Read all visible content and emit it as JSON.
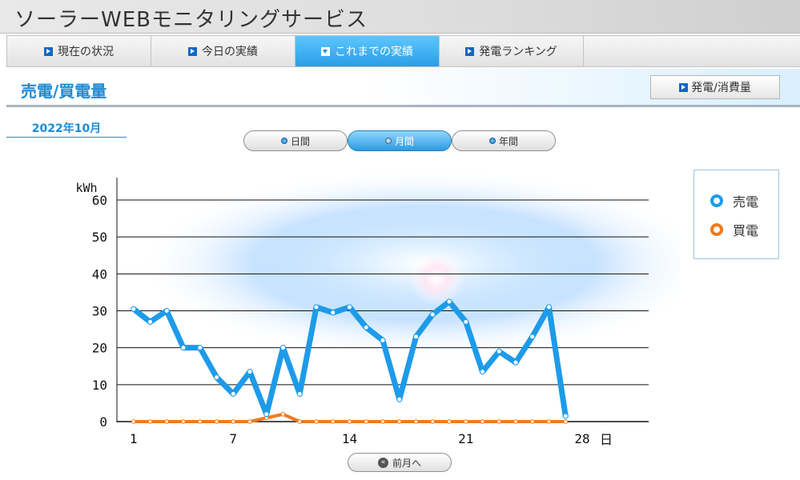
{
  "app": {
    "title": "ソーラーWEBモニタリングサービス"
  },
  "nav": {
    "items": [
      {
        "label": "現在の状況",
        "active": false
      },
      {
        "label": "今日の実績",
        "active": false
      },
      {
        "label": "これまでの実績",
        "active": true
      },
      {
        "label": "発電ランキング",
        "active": false
      }
    ]
  },
  "section": {
    "title": "売電/買電量",
    "toggle_button": "発電/消費量"
  },
  "period": {
    "date_label": "2022年10月",
    "tabs": [
      "日間",
      "月間",
      "年間"
    ],
    "selected": "月間"
  },
  "legend": [
    {
      "label": "売電",
      "color": "#1d9be9"
    },
    {
      "label": "買電",
      "color": "#f07a1d"
    }
  ],
  "prev_button": "前月へ",
  "colors": {
    "accent": "#1d8bd6",
    "sell": "#1d9be9",
    "buy": "#f07a1d"
  },
  "chart_data": {
    "type": "line",
    "ylabel": "kWh",
    "xlabel": "日",
    "ylim": [
      0,
      60
    ],
    "yticks": [
      0,
      10,
      20,
      30,
      40,
      50,
      60
    ],
    "xticks": [
      1,
      7,
      14,
      21,
      28
    ],
    "xlim": [
      0,
      32
    ],
    "grid": true,
    "legend_position": "right",
    "x": [
      1,
      2,
      3,
      4,
      5,
      6,
      7,
      8,
      9,
      10,
      11,
      12,
      13,
      14,
      15,
      16,
      17,
      18,
      19,
      20,
      21,
      22,
      23,
      24,
      25,
      26,
      27
    ],
    "series": [
      {
        "name": "売電",
        "values": [
          30.5,
          27,
          30,
          20,
          20,
          12,
          7.5,
          13.5,
          2,
          20,
          7.5,
          31,
          29.5,
          31,
          25.5,
          22,
          6,
          23,
          29,
          32.5,
          27,
          13.5,
          19,
          16,
          23,
          31,
          1.5
        ]
      },
      {
        "name": "買電",
        "values": [
          0,
          0,
          0,
          0,
          0,
          0,
          0,
          0,
          1,
          2,
          0,
          0,
          0,
          0,
          0,
          0,
          0,
          0,
          0,
          0,
          0,
          0,
          0,
          0,
          0,
          0,
          0
        ]
      }
    ]
  }
}
